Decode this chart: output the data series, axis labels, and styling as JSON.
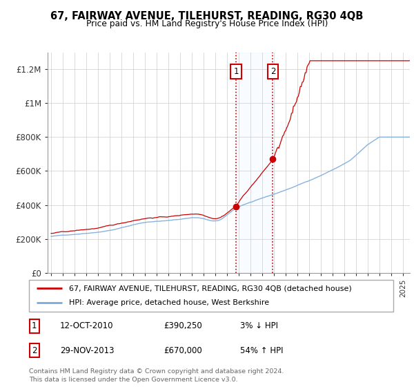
{
  "title1": "67, FAIRWAY AVENUE, TILEHURST, READING, RG30 4QB",
  "title2": "Price paid vs. HM Land Registry's House Price Index (HPI)",
  "ylim": [
    0,
    1300000
  ],
  "yticks": [
    0,
    200000,
    400000,
    600000,
    800000,
    1000000,
    1200000
  ],
  "ytick_labels": [
    "£0",
    "£200K",
    "£400K",
    "£600K",
    "£800K",
    "£1M",
    "£1.2M"
  ],
  "sale1_date": 2010.78,
  "sale1_price": 390250,
  "sale2_date": 2013.91,
  "sale2_price": 670000,
  "legend_line1": "67, FAIRWAY AVENUE, TILEHURST, READING, RG30 4QB (detached house)",
  "legend_line2": "HPI: Average price, detached house, West Berkshire",
  "footer": "Contains HM Land Registry data © Crown copyright and database right 2024.\nThis data is licensed under the Open Government Licence v3.0.",
  "hpi_color": "#7aaadd",
  "price_color": "#cc0000",
  "shade_color": "#ddeeff",
  "grid_color": "#cccccc",
  "xlim_left": 1994.7,
  "xlim_right": 2025.6
}
